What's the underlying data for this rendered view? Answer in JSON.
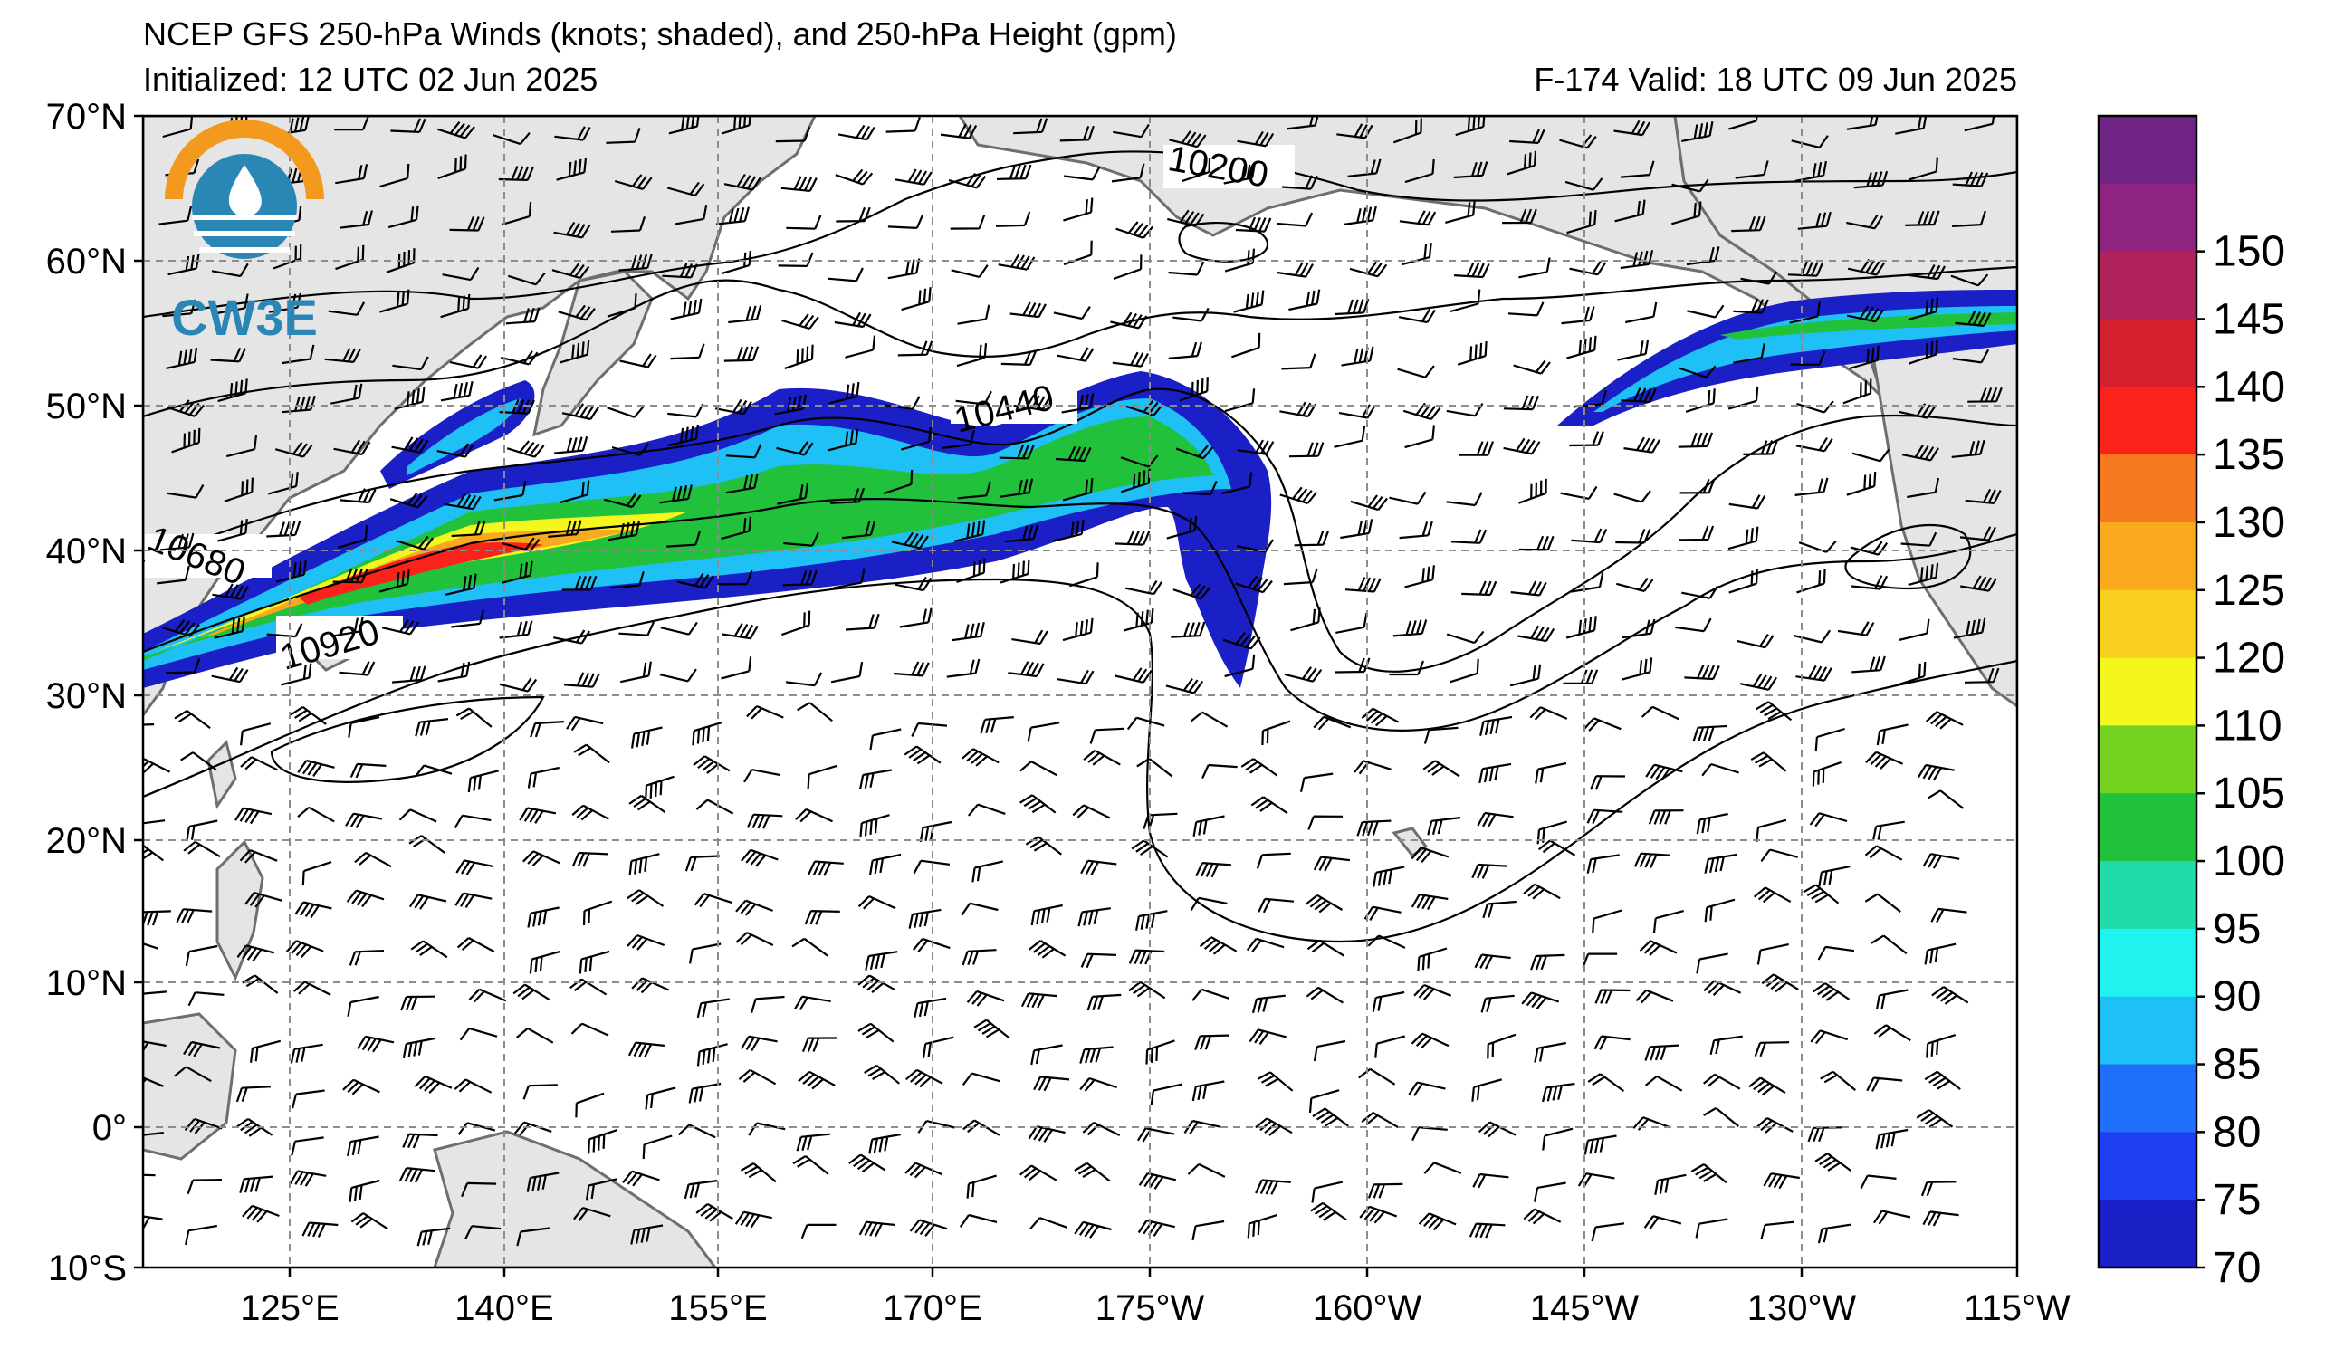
{
  "header": {
    "title": "NCEP GFS 250-hPa Winds (knots; shaded), and 250-hPa Height (gpm)",
    "initialized": "Initialized: 12 UTC 02 Jun 2025",
    "valid": "F-174  Valid: 18 UTC 09 Jun 2025"
  },
  "logo": {
    "text": "CW3E",
    "orange": "#f39a1e",
    "blue": "#2a86b4"
  },
  "map": {
    "lat_labels": [
      "70°N",
      "60°N",
      "50°N",
      "40°N",
      "30°N",
      "20°N",
      "10°N",
      "0°",
      "10°S"
    ],
    "lon_labels": [
      "125°E",
      "140°E",
      "155°E",
      "170°E",
      "175°W",
      "160°W",
      "145°W",
      "130°W",
      "115°W"
    ],
    "contour_labels": [
      "10200",
      "10440",
      "10680",
      "10920"
    ],
    "land_color": "#e5e5e5",
    "coast_color": "#6e6e6e"
  },
  "colorbar": {
    "labels": [
      "70",
      "75",
      "80",
      "85",
      "90",
      "95",
      "100",
      "105",
      "110",
      "120",
      "125",
      "130",
      "135",
      "140",
      "145",
      "150"
    ],
    "colors": [
      "#1b1fc6",
      "#1e3ff2",
      "#1f6ffb",
      "#1fc0f6",
      "#1ff2ef",
      "#20dca8",
      "#21c13c",
      "#73d21f",
      "#f6f61f",
      "#f8cf1e",
      "#f9a91e",
      "#f57a1f",
      "#f9231c",
      "#d5202f",
      "#b0225a",
      "#8f2380",
      "#6e2385"
    ]
  }
}
